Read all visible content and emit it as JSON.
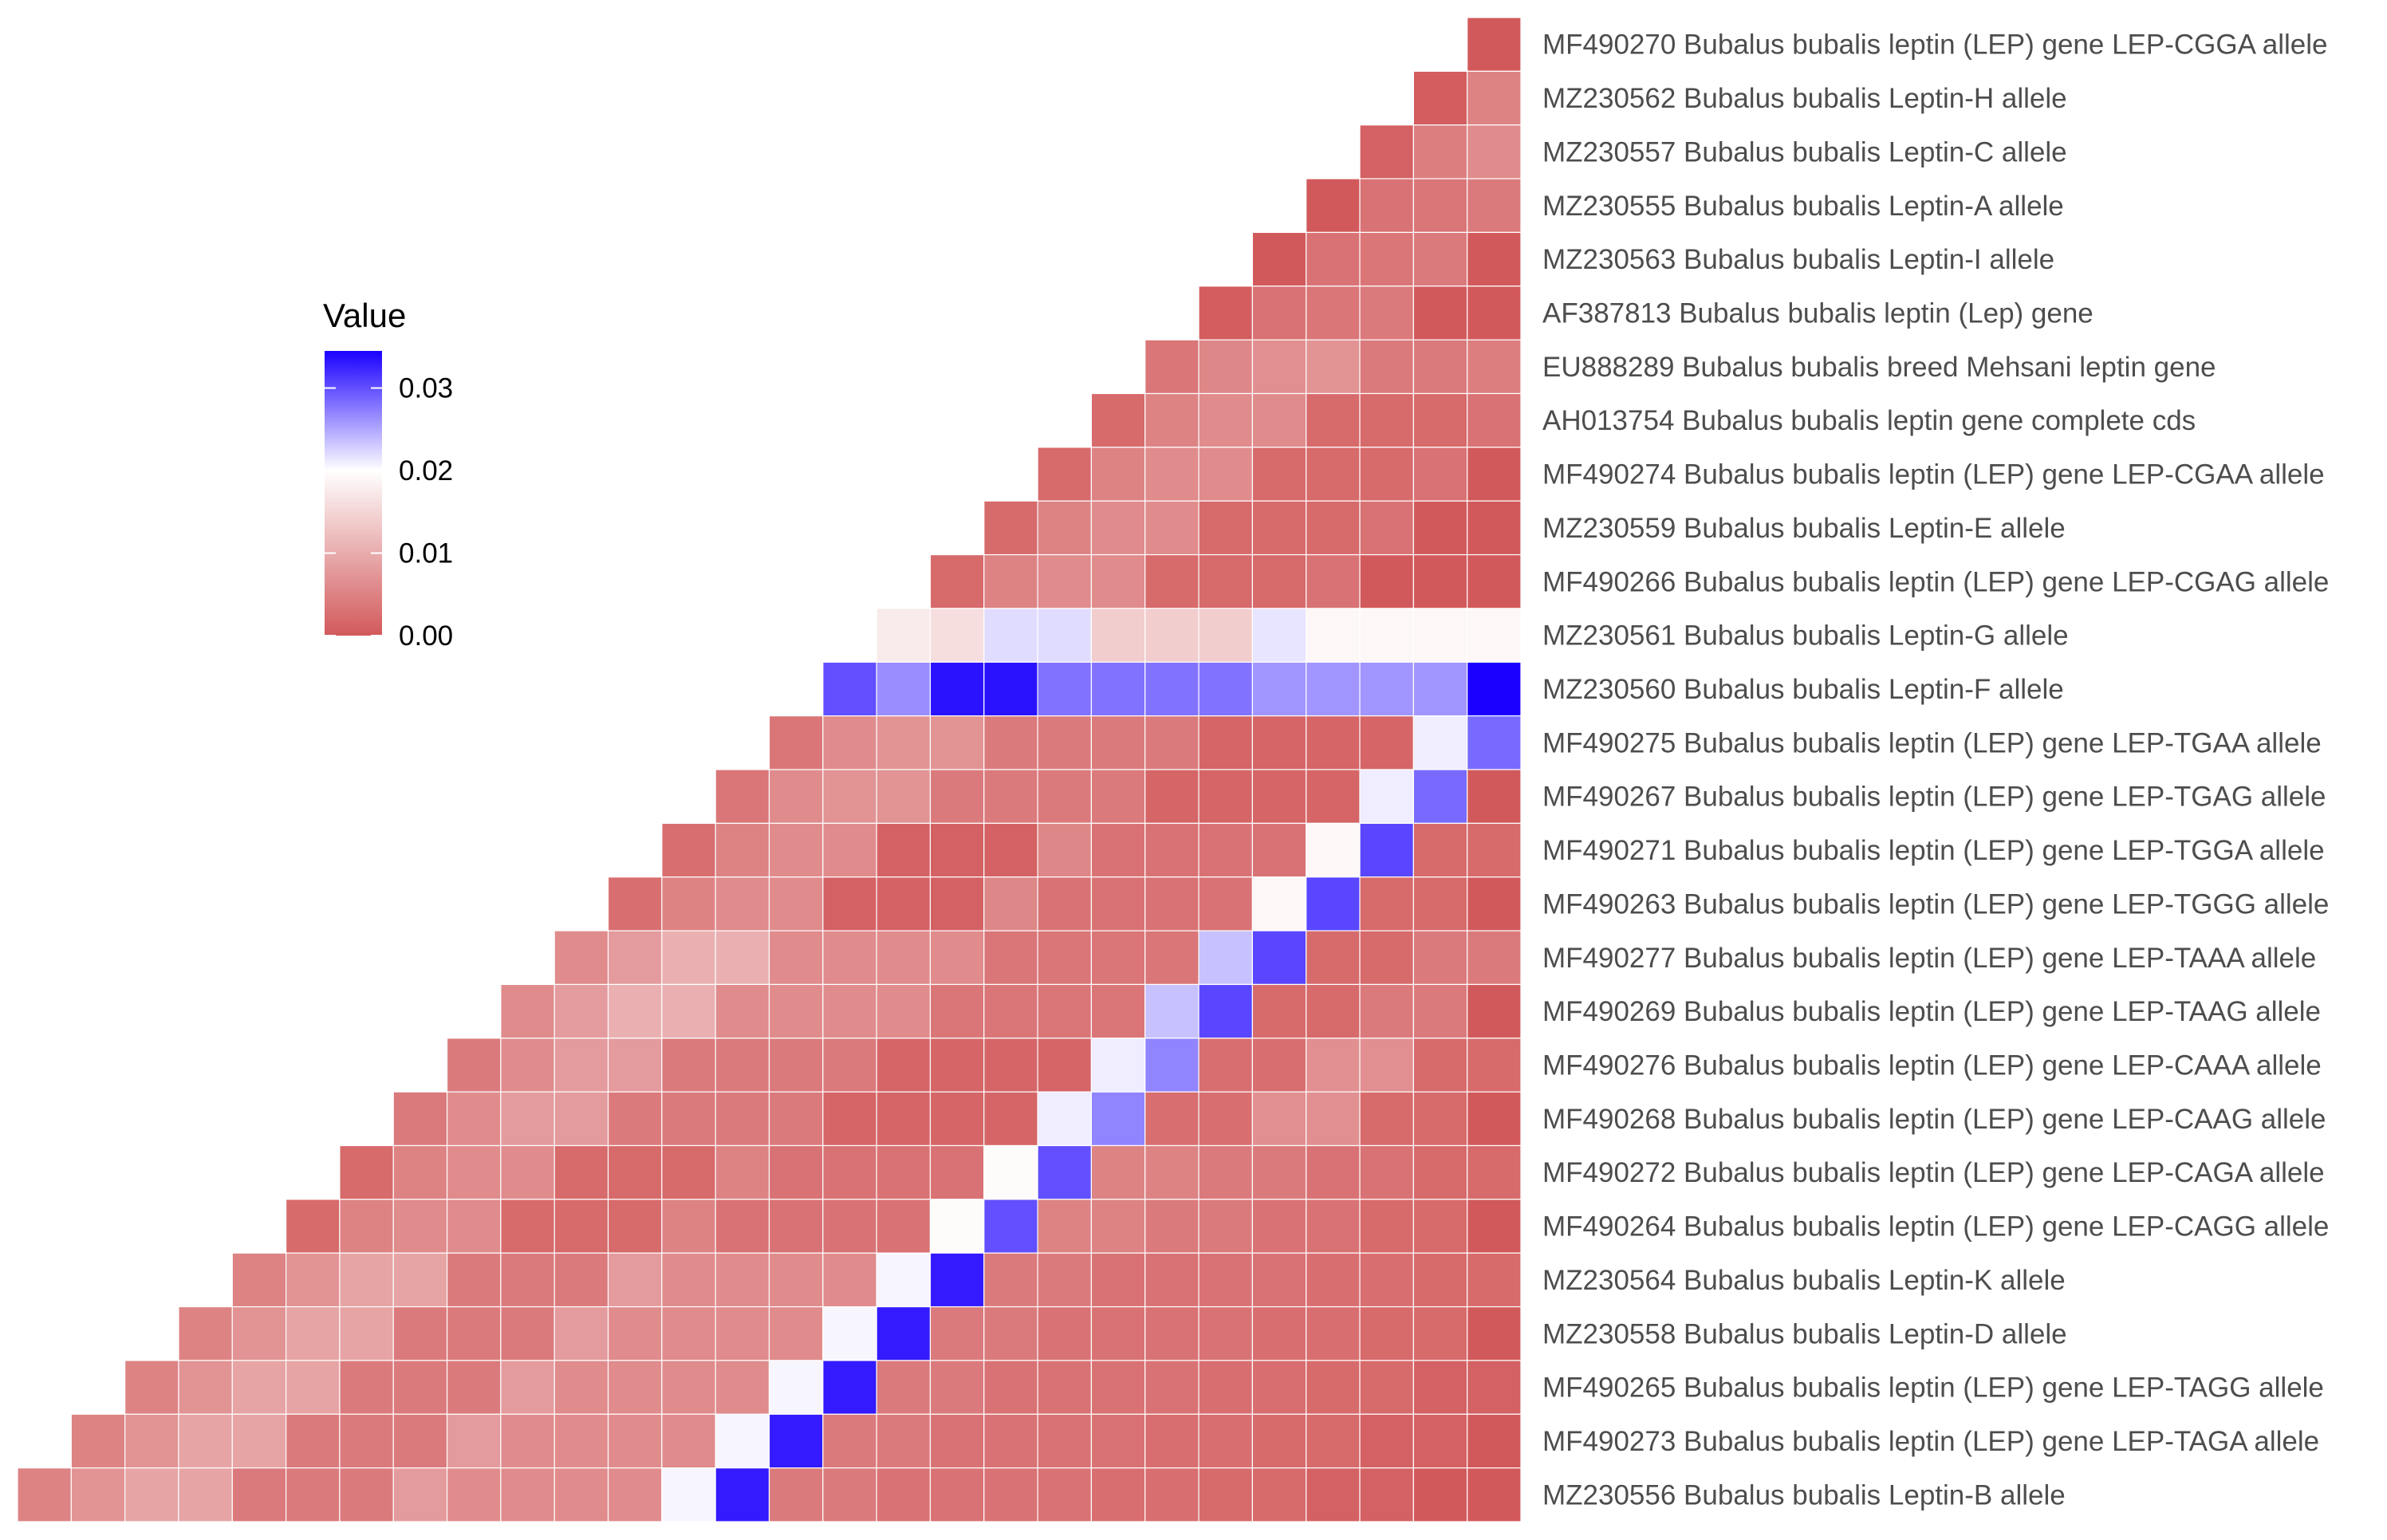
{
  "chart_data": {
    "type": "heatmap",
    "shape": "lower-triangle",
    "colors": {
      "low": "#d2595b",
      "mid": "#ffffff",
      "high": "#1b00ff"
    },
    "legend": {
      "title": "Value",
      "position": "left",
      "ticks": [
        "0.00",
        "0.01",
        "0.02",
        "0.03"
      ],
      "range": [
        0,
        0.0345
      ],
      "midpoint": 0.02
    },
    "labels": [
      "MF490270 Bubalus bubalis leptin (LEP) gene LEP-CGGA allele",
      "MZ230562 Bubalus bubalis Leptin-H allele",
      "MZ230557 Bubalus bubalis Leptin-C allele",
      "MZ230555 Bubalus bubalis Leptin-A allele",
      "MZ230563 Bubalus bubalis Leptin-I allele",
      "AF387813 Bubalus bubalis leptin (Lep) gene",
      "EU888289 Bubalus bubalis breed Mehsani leptin gene",
      "AH013754 Bubalus bubalis leptin gene complete cds",
      "MF490274 Bubalus bubalis leptin (LEP) gene LEP-CGAA allele",
      "MZ230559 Bubalus bubalis Leptin-E allele",
      "MF490266 Bubalus bubalis leptin (LEP) gene LEP-CGAG allele",
      "MZ230561 Bubalus bubalis Leptin-G allele",
      "MZ230560 Bubalus bubalis Leptin-F allele",
      "MF490275 Bubalus bubalis leptin (LEP) gene LEP-TGAA allele",
      "MF490267 Bubalus bubalis leptin (LEP) gene LEP-TGAG allele",
      "MF490271 Bubalus bubalis leptin (LEP) gene LEP-TGGA allele",
      "MF490263 Bubalus bubalis leptin (LEP) gene LEP-TGGG allele",
      "MF490277 Bubalus bubalis leptin (LEP) gene LEP-TAAA allele",
      "MF490269 Bubalus bubalis leptin (LEP) gene LEP-TAAG allele",
      "MF490276 Bubalus bubalis leptin (LEP) gene LEP-CAAA allele",
      "MF490268 Bubalus bubalis leptin (LEP) gene LEP-CAAG allele",
      "MF490272 Bubalus bubalis leptin (LEP) gene LEP-CAGA allele",
      "MF490264 Bubalus bubalis leptin (LEP) gene LEP-CAGG allele",
      "MZ230564 Bubalus bubalis Leptin-K allele",
      "MZ230558 Bubalus bubalis Leptin-D allele",
      "MF490265 Bubalus bubalis leptin (LEP) gene LEP-TAGG allele",
      "MF490273 Bubalus bubalis leptin (LEP) gene LEP-TAGA allele",
      "MZ230556 Bubalus bubalis Leptin-B allele"
    ],
    "rows": [
      [
        0.0
      ],
      [
        0.0005,
        0.005
      ],
      [
        0.001,
        0.0045,
        0.006
      ],
      [
        0.0,
        0.003,
        0.0035,
        0.004
      ],
      [
        0.0,
        0.003,
        0.0035,
        0.004,
        0.0
      ],
      [
        0.0005,
        0.003,
        0.0035,
        0.004,
        0.0,
        0.0
      ],
      [
        0.0035,
        0.0055,
        0.0065,
        0.007,
        0.004,
        0.004,
        0.0045
      ],
      [
        0.002,
        0.005,
        0.006,
        0.006,
        0.002,
        0.002,
        0.002,
        0.003
      ],
      [
        0.002,
        0.005,
        0.006,
        0.006,
        0.002,
        0.002,
        0.002,
        0.003,
        0.0
      ],
      [
        0.002,
        0.005,
        0.006,
        0.006,
        0.002,
        0.002,
        0.002,
        0.003,
        0.0,
        0.0
      ],
      [
        0.002,
        0.005,
        0.006,
        0.006,
        0.002,
        0.002,
        0.002,
        0.003,
        0.0,
        0.0,
        0.0
      ],
      [
        0.0175,
        0.016,
        0.022,
        0.022,
        0.014,
        0.014,
        0.014,
        0.0215,
        0.019,
        0.019,
        0.019,
        0.019
      ],
      [
        0.03,
        0.0265,
        0.0335,
        0.0335,
        0.028,
        0.028,
        0.028,
        0.028,
        0.026,
        0.026,
        0.026,
        0.026,
        0.0345
      ],
      [
        0.0035,
        0.006,
        0.007,
        0.007,
        0.004,
        0.004,
        0.004,
        0.004,
        0.0015,
        0.0015,
        0.0015,
        0.0015,
        0.021,
        0.0285
      ],
      [
        0.0035,
        0.006,
        0.007,
        0.007,
        0.004,
        0.004,
        0.004,
        0.004,
        0.0015,
        0.0015,
        0.0015,
        0.0015,
        0.021,
        0.0285,
        0.0
      ],
      [
        0.0025,
        0.005,
        0.006,
        0.006,
        0.001,
        0.001,
        0.001,
        0.0055,
        0.003,
        0.003,
        0.003,
        0.003,
        0.019,
        0.0305,
        0.002,
        0.002
      ],
      [
        0.0025,
        0.005,
        0.006,
        0.006,
        0.001,
        0.001,
        0.001,
        0.0055,
        0.003,
        0.003,
        0.003,
        0.003,
        0.019,
        0.0305,
        0.002,
        0.002,
        0.0
      ],
      [
        0.006,
        0.008,
        0.0105,
        0.0105,
        0.006,
        0.006,
        0.006,
        0.006,
        0.0035,
        0.0035,
        0.0035,
        0.0035,
        0.0235,
        0.0305,
        0.002,
        0.002,
        0.004,
        0.004
      ],
      [
        0.006,
        0.008,
        0.0105,
        0.0105,
        0.006,
        0.006,
        0.006,
        0.006,
        0.0035,
        0.0035,
        0.0035,
        0.0035,
        0.0235,
        0.0305,
        0.002,
        0.002,
        0.004,
        0.004,
        0.0
      ],
      [
        0.004,
        0.006,
        0.008,
        0.008,
        0.004,
        0.004,
        0.004,
        0.004,
        0.0015,
        0.0015,
        0.0015,
        0.0015,
        0.021,
        0.027,
        0.0025,
        0.0025,
        0.0065,
        0.0065,
        0.002,
        0.002
      ],
      [
        0.004,
        0.006,
        0.008,
        0.008,
        0.004,
        0.004,
        0.004,
        0.004,
        0.0015,
        0.0015,
        0.0015,
        0.0015,
        0.021,
        0.027,
        0.0025,
        0.0025,
        0.0065,
        0.0065,
        0.002,
        0.002,
        0.0
      ],
      [
        0.002,
        0.005,
        0.006,
        0.006,
        0.002,
        0.002,
        0.002,
        0.005,
        0.003,
        0.003,
        0.003,
        0.003,
        0.0195,
        0.03,
        0.005,
        0.005,
        0.004,
        0.004,
        0.003,
        0.003,
        0.002,
        0.002
      ],
      [
        0.002,
        0.005,
        0.006,
        0.006,
        0.002,
        0.002,
        0.002,
        0.005,
        0.003,
        0.003,
        0.003,
        0.003,
        0.0195,
        0.03,
        0.005,
        0.005,
        0.004,
        0.004,
        0.003,
        0.003,
        0.002,
        0.002,
        0.0
      ],
      [
        0.005,
        0.007,
        0.009,
        0.009,
        0.004,
        0.004,
        0.004,
        0.008,
        0.006,
        0.006,
        0.006,
        0.006,
        0.0205,
        0.033,
        0.004,
        0.004,
        0.003,
        0.003,
        0.003,
        0.003,
        0.0025,
        0.0025,
        0.002,
        0.002
      ],
      [
        0.005,
        0.007,
        0.009,
        0.009,
        0.004,
        0.004,
        0.004,
        0.008,
        0.006,
        0.006,
        0.006,
        0.006,
        0.0205,
        0.033,
        0.004,
        0.004,
        0.003,
        0.003,
        0.003,
        0.003,
        0.0025,
        0.0025,
        0.002,
        0.002,
        0.0
      ],
      [
        0.005,
        0.007,
        0.009,
        0.009,
        0.004,
        0.004,
        0.004,
        0.008,
        0.006,
        0.006,
        0.006,
        0.006,
        0.0205,
        0.033,
        0.004,
        0.004,
        0.003,
        0.003,
        0.003,
        0.003,
        0.0025,
        0.0025,
        0.002,
        0.002,
        0.001,
        0.001
      ],
      [
        0.005,
        0.007,
        0.009,
        0.009,
        0.004,
        0.004,
        0.004,
        0.008,
        0.006,
        0.006,
        0.006,
        0.006,
        0.0205,
        0.033,
        0.004,
        0.004,
        0.003,
        0.003,
        0.003,
        0.003,
        0.0025,
        0.0025,
        0.002,
        0.002,
        0.001,
        0.001,
        0.0
      ],
      [
        0.005,
        0.007,
        0.009,
        0.009,
        0.004,
        0.004,
        0.004,
        0.008,
        0.006,
        0.006,
        0.006,
        0.006,
        0.0205,
        0.033,
        0.004,
        0.004,
        0.003,
        0.003,
        0.003,
        0.003,
        0.0025,
        0.0025,
        0.002,
        0.002,
        0.001,
        0.001,
        0.0,
        0.0
      ]
    ]
  }
}
